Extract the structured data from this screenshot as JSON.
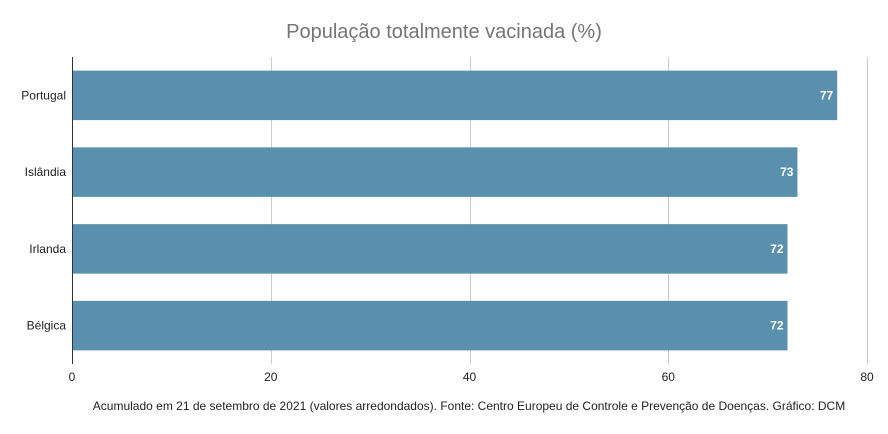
{
  "chart_data": {
    "type": "bar",
    "orientation": "horizontal",
    "title": "População totalmente vacinada (%)",
    "categories": [
      "Portugal",
      "Islândia",
      "Irlanda",
      "Bélgica"
    ],
    "values": [
      77,
      73,
      72,
      72
    ],
    "data_labels": [
      "77",
      "73",
      "72",
      "72"
    ],
    "xlim": [
      0,
      80
    ],
    "x_ticks": [
      0,
      20,
      40,
      60,
      80
    ],
    "x_tick_labels": [
      "0",
      "20",
      "40",
      "60",
      "80"
    ],
    "xlabel": "",
    "ylabel": "",
    "grid": true,
    "legend": "none",
    "bar_color": "#5990ae",
    "caption": "Acumulado em 21 de setembro de 2021 (valores arredondados). Fonte: Centro Europeu de Controle e Prevenção de Doenças. Gráfico: DCM"
  }
}
